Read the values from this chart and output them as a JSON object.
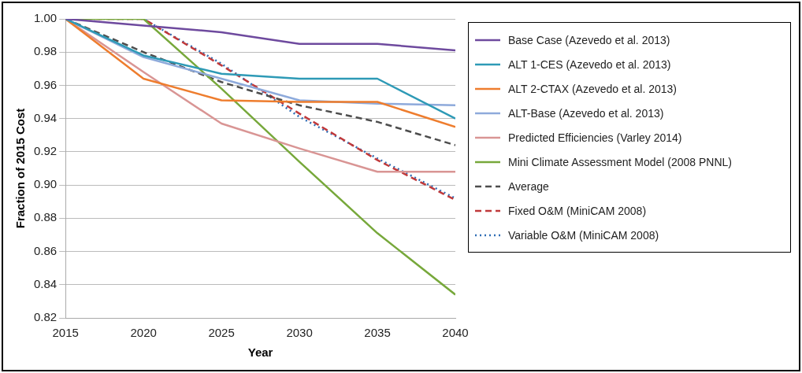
{
  "chart_data": {
    "type": "line",
    "xlabel": "Year",
    "ylabel": "Fraction of 2015 Cost",
    "x": [
      2015,
      2020,
      2025,
      2030,
      2035,
      2040
    ],
    "xlim": [
      2015,
      2040
    ],
    "xticks": [
      2015,
      2020,
      2025,
      2030,
      2035,
      2040
    ],
    "ylim": [
      0.82,
      1.0
    ],
    "yticks": [
      {
        "value": 0.82,
        "label": "0.82"
      },
      {
        "value": 0.84,
        "label": "0.84"
      },
      {
        "value": 0.86,
        "label": "0.86"
      },
      {
        "value": 0.88,
        "label": "0.88"
      },
      {
        "value": 0.9,
        "label": "0.90"
      },
      {
        "value": 0.92,
        "label": "0.92"
      },
      {
        "value": 0.94,
        "label": "0.94"
      },
      {
        "value": 0.96,
        "label": "0.96"
      },
      {
        "value": 0.98,
        "label": "0.98"
      },
      {
        "value": 1.0,
        "label": "1.00"
      }
    ],
    "grid": "y",
    "legend": "right",
    "marker": "none",
    "series": [
      {
        "name": "Base Case (Azevedo et al. 2013)",
        "color": "#6e4a9e",
        "line_style": "solid",
        "values": [
          1.0,
          0.996,
          0.992,
          0.985,
          0.985,
          0.981
        ]
      },
      {
        "name": "ALT 1-CES (Azevedo et al. 2013)",
        "color": "#2e9ab6",
        "line_style": "solid",
        "values": [
          1.0,
          0.978,
          0.967,
          0.964,
          0.964,
          0.94
        ]
      },
      {
        "name": "ALT 2-CTAX  (Azevedo et al. 2013)",
        "color": "#ee7d2e",
        "line_style": "solid",
        "values": [
          1.0,
          0.964,
          0.951,
          0.95,
          0.95,
          0.935
        ]
      },
      {
        "name": "ALT-Base (Azevedo et al. 2013)",
        "color": "#8eaadb",
        "line_style": "solid",
        "values": [
          1.0,
          0.977,
          0.964,
          0.951,
          0.949,
          0.948
        ]
      },
      {
        "name": "Predicted Efficiencies (Varley 2014)",
        "color": "#d99594",
        "line_style": "solid",
        "values": [
          1.0,
          0.968,
          0.937,
          0.922,
          0.908,
          0.908
        ]
      },
      {
        "name": "Mini Climate Assessment Model (2008 PNNL)",
        "color": "#77a83b",
        "line_style": "solid",
        "values": [
          1.0,
          1.0,
          0.958,
          0.914,
          0.871,
          0.834
        ]
      },
      {
        "name": "Average",
        "color": "#4d4d4d",
        "line_style": "dashed",
        "values": [
          1.0,
          0.98,
          0.962,
          0.948,
          0.938,
          0.924
        ]
      },
      {
        "name": "Fixed O&M (MiniCAM 2008)",
        "color": "#c0393b",
        "line_style": "dashed",
        "values": [
          1.0,
          1.0,
          0.972,
          0.943,
          0.915,
          0.891
        ]
      },
      {
        "name": "Variable O&M (MiniCAM 2008)",
        "color": "#2f6db5",
        "line_style": "dotted",
        "values": [
          1.0,
          1.0,
          0.973,
          0.941,
          0.916,
          0.892
        ]
      }
    ]
  }
}
